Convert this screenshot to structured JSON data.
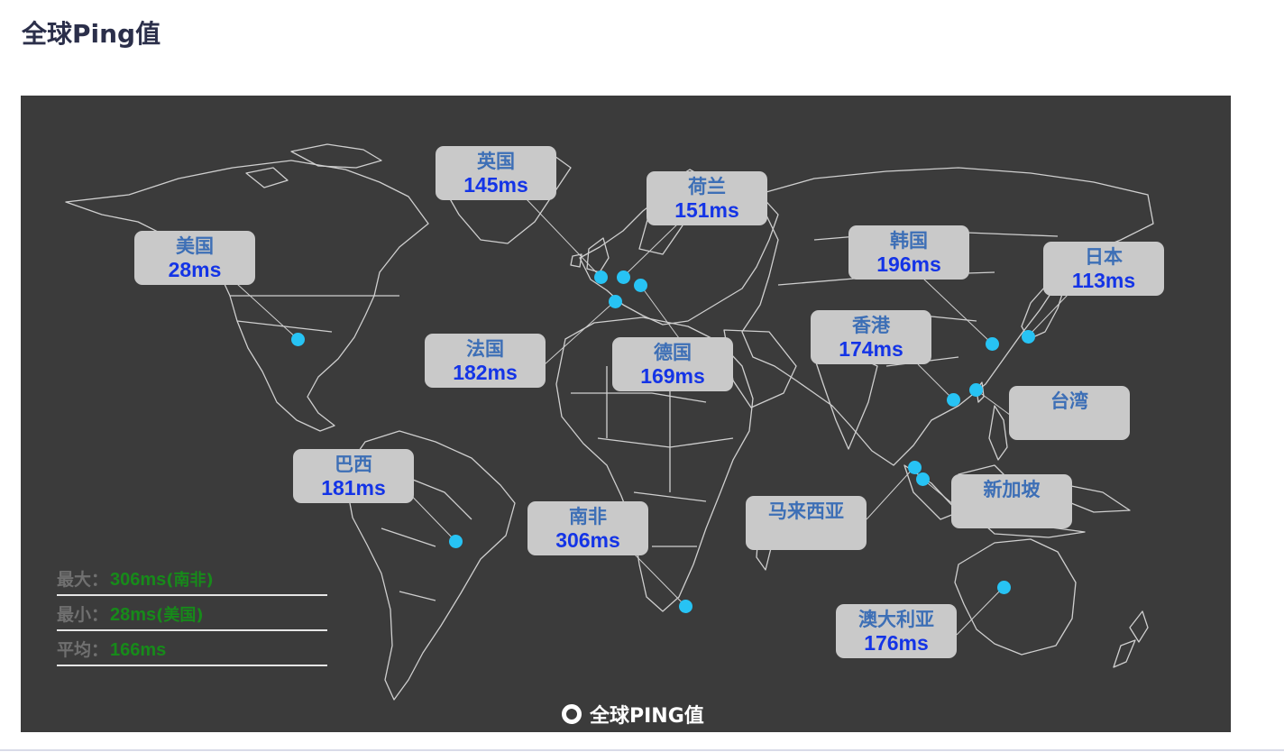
{
  "page": {
    "title": "全球Ping值"
  },
  "map": {
    "locations": [
      {
        "id": "usa",
        "name": "美国",
        "ping": "28ms"
      },
      {
        "id": "uk",
        "name": "英国",
        "ping": "145ms"
      },
      {
        "id": "netherlands",
        "name": "荷兰",
        "ping": "151ms"
      },
      {
        "id": "france",
        "name": "法国",
        "ping": "182ms"
      },
      {
        "id": "germany",
        "name": "德国",
        "ping": "169ms"
      },
      {
        "id": "korea",
        "name": "韩国",
        "ping": "196ms"
      },
      {
        "id": "japan",
        "name": "日本",
        "ping": "113ms"
      },
      {
        "id": "hongkong",
        "name": "香港",
        "ping": "174ms"
      },
      {
        "id": "taiwan",
        "name": "台湾",
        "ping": ""
      },
      {
        "id": "brazil",
        "name": "巴西",
        "ping": "181ms"
      },
      {
        "id": "southafrica",
        "name": "南非",
        "ping": "306ms"
      },
      {
        "id": "malaysia",
        "name": "马来西亚",
        "ping": ""
      },
      {
        "id": "singapore",
        "name": "新加坡",
        "ping": ""
      },
      {
        "id": "australia",
        "name": "澳大利亚",
        "ping": "176ms"
      }
    ],
    "colors": {
      "background": "#3b3b3b",
      "land_outline": "#cfcfcf",
      "point": "#27c3f4",
      "label_box": "#c9c9c9",
      "label_name": "#3d6fb6",
      "label_ping": "#1434e6",
      "stat_value": "#178a1a"
    }
  },
  "stats": {
    "max_label": "最大：",
    "max_value": "306ms",
    "max_place": "(南非)",
    "min_label": "最小：",
    "min_value": "28ms",
    "min_place": "(美国)",
    "avg_label": "平均：",
    "avg_value": "166ms"
  },
  "legend": {
    "label": "全球PING值",
    "icon": "ring-icon"
  }
}
